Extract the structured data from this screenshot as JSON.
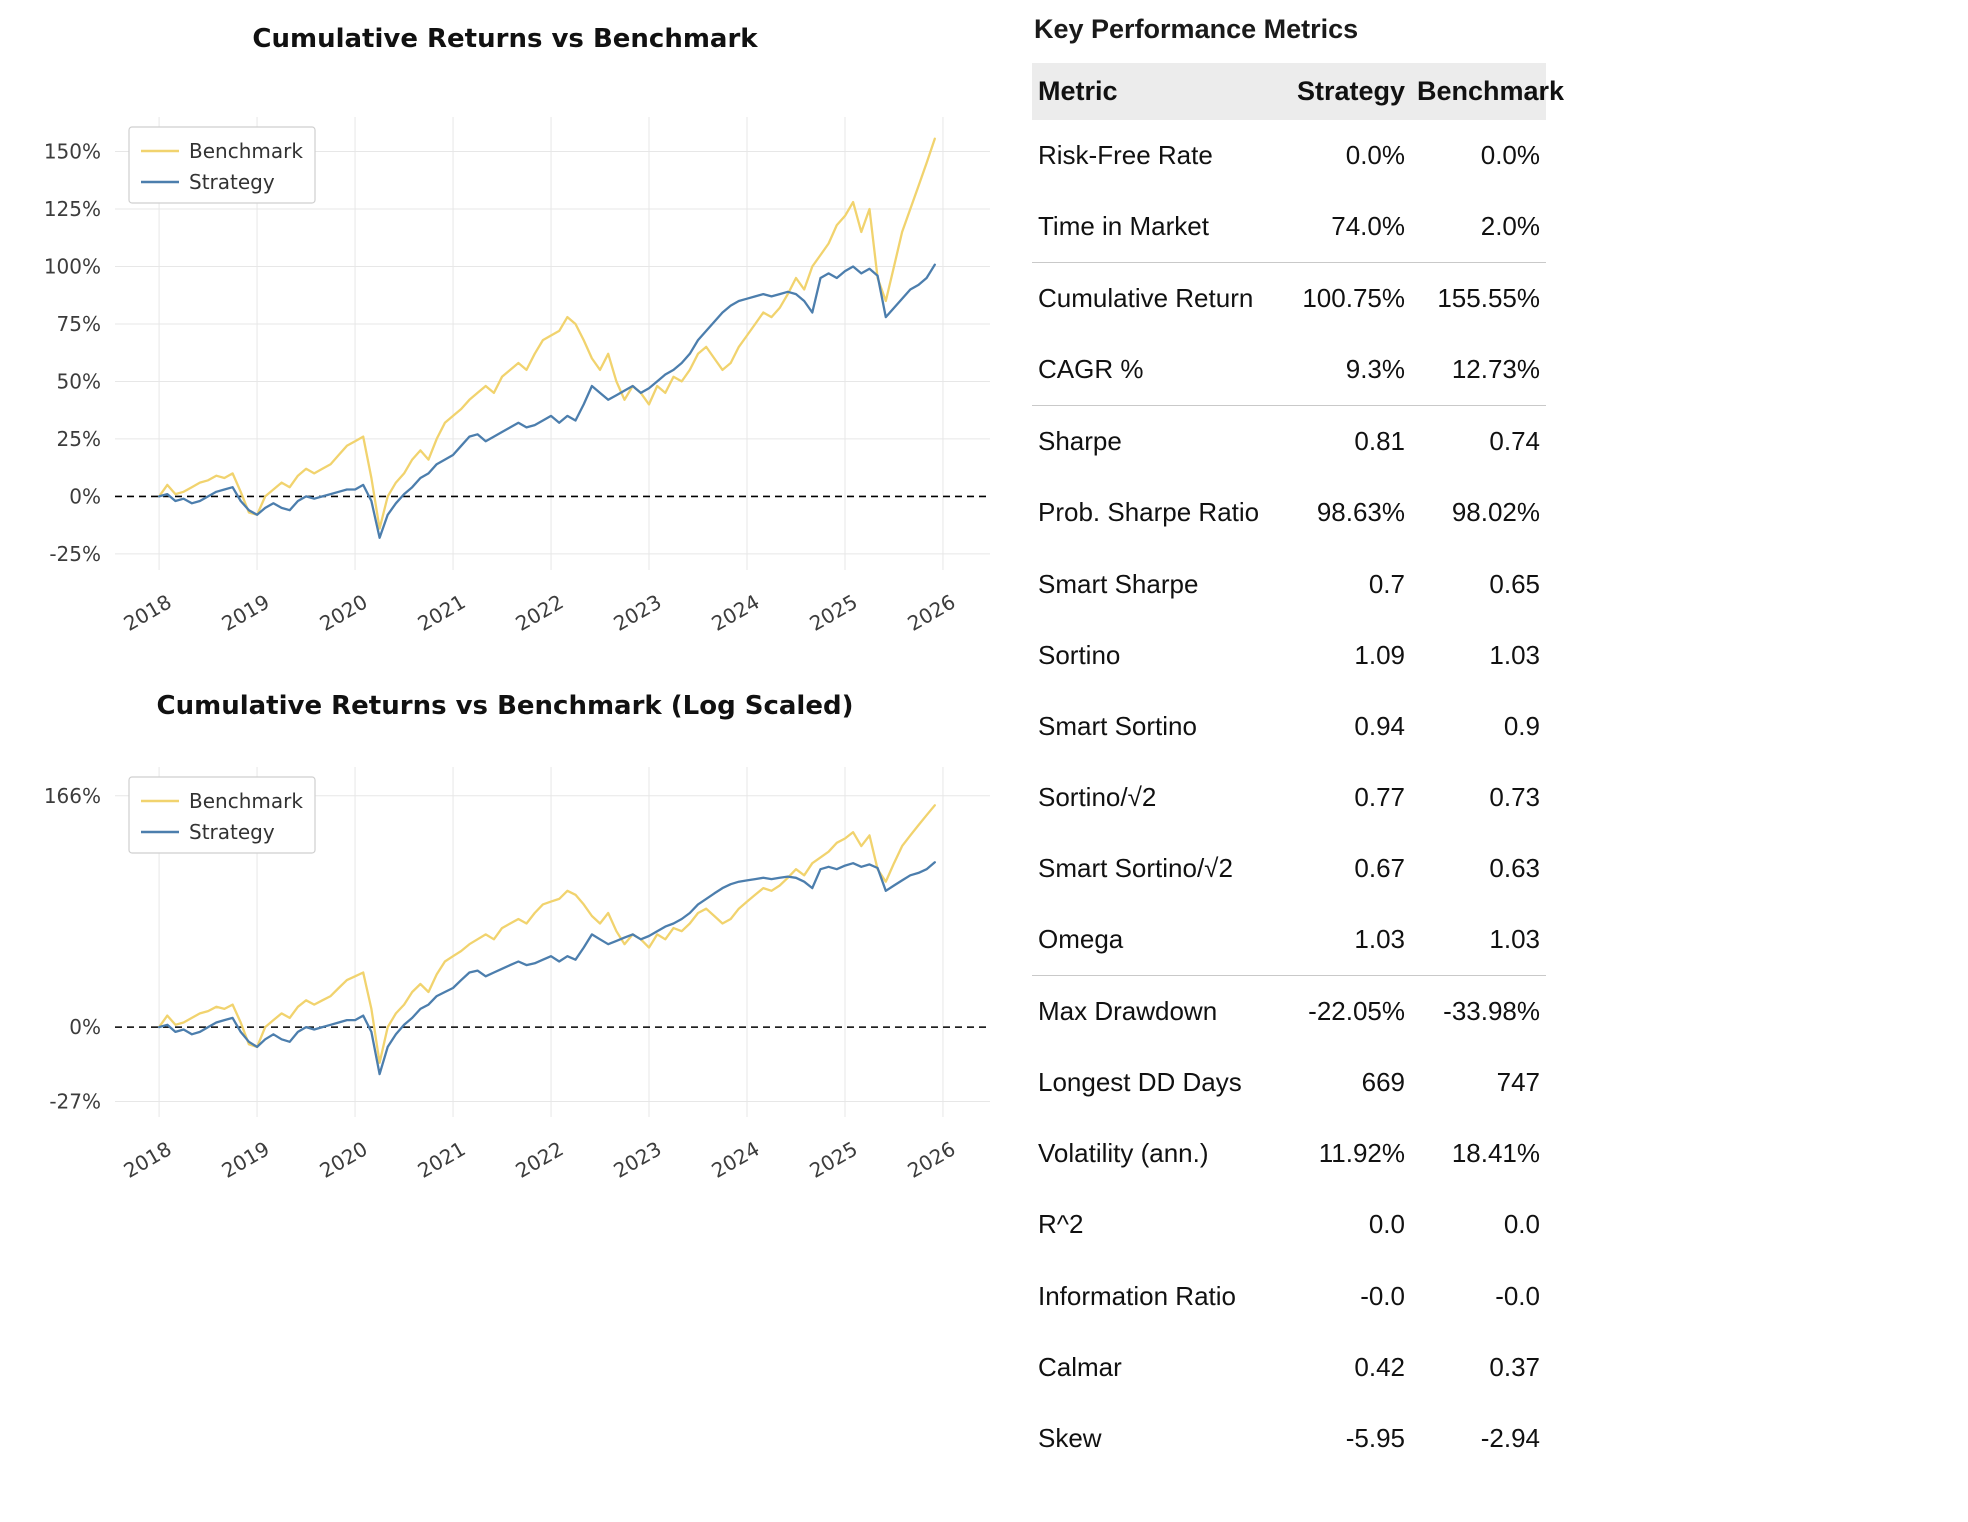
{
  "chart_data": [
    {
      "type": "line",
      "title": "Cumulative Returns vs Benchmark",
      "legend": {
        "position": "top-left",
        "entries": [
          "Benchmark",
          "Strategy"
        ]
      },
      "x_ticks": [
        2018,
        2019,
        2020,
        2021,
        2022,
        2023,
        2024,
        2025,
        2026
      ],
      "x_tick_labels": [
        "2018",
        "2019",
        "2020",
        "2021",
        "2022",
        "2023",
        "2024",
        "2025",
        "2026"
      ],
      "y_ticks": [
        150,
        125,
        100,
        75,
        50,
        25,
        0,
        -25
      ],
      "y_tick_labels": [
        "150%",
        "125%",
        "100%",
        "75%",
        "50%",
        "25%",
        "0%",
        "-25%"
      ],
      "xlim": [
        2017.55,
        2026.48
      ],
      "ylim": [
        -32,
        165
      ],
      "log_scale": false,
      "zero_line": true,
      "grid": true,
      "x_start": 2018.0,
      "x_step": 0.083333,
      "n_points": 96,
      "series": [
        {
          "name": "Benchmark",
          "color": "#f1d36e",
          "values": [
            0,
            5,
            1,
            2,
            4,
            6,
            7,
            9,
            8,
            10,
            2,
            -7,
            -8,
            0,
            3,
            6,
            4,
            9,
            12,
            10,
            12,
            14,
            18,
            22,
            24,
            26,
            8,
            -14,
            0,
            6,
            10,
            16,
            20,
            16,
            25,
            32,
            35,
            38,
            42,
            45,
            48,
            45,
            52,
            55,
            58,
            55,
            62,
            68,
            70,
            72,
            78,
            75,
            68,
            60,
            55,
            62,
            50,
            42,
            48,
            45,
            40,
            48,
            45,
            52,
            50,
            55,
            62,
            65,
            60,
            55,
            58,
            65,
            70,
            75,
            80,
            78,
            82,
            88,
            95,
            90,
            100,
            105,
            110,
            118,
            122,
            128,
            115,
            125,
            95,
            85,
            100,
            115,
            125,
            135,
            145,
            155.55
          ]
        },
        {
          "name": "Strategy",
          "color": "#4c7ead",
          "values": [
            0,
            1,
            -2,
            -1,
            -3,
            -2,
            0,
            2,
            3,
            4,
            -2,
            -6,
            -8,
            -5,
            -3,
            -5,
            -6,
            -2,
            0,
            -1,
            0,
            1,
            2,
            3,
            3,
            5,
            -2,
            -18,
            -8,
            -3,
            1,
            4,
            8,
            10,
            14,
            16,
            18,
            22,
            26,
            27,
            24,
            26,
            28,
            30,
            32,
            30,
            31,
            33,
            35,
            32,
            35,
            33,
            40,
            48,
            45,
            42,
            44,
            46,
            48,
            45,
            47,
            50,
            53,
            55,
            58,
            62,
            68,
            72,
            76,
            80,
            83,
            85,
            86,
            87,
            88,
            87,
            88,
            89,
            88,
            85,
            80,
            95,
            97,
            95,
            98,
            100,
            97,
            99,
            96,
            78,
            82,
            86,
            90,
            92,
            95,
            100.75
          ]
        }
      ]
    },
    {
      "type": "line",
      "title": "Cumulative Returns vs Benchmark (Log Scaled)",
      "legend": {
        "position": "top-left",
        "entries": [
          "Benchmark",
          "Strategy"
        ]
      },
      "x_ticks": [
        2018,
        2019,
        2020,
        2021,
        2022,
        2023,
        2024,
        2025,
        2026
      ],
      "x_tick_labels": [
        "2018",
        "2019",
        "2020",
        "2021",
        "2022",
        "2023",
        "2024",
        "2025",
        "2026"
      ],
      "y_ticks": [
        166,
        0,
        -27
      ],
      "y_tick_labels": [
        "166%",
        "0%",
        "-27%"
      ],
      "xlim": [
        2017.55,
        2026.48
      ],
      "ylim_log": [
        -0.38,
        1.1
      ],
      "log_scale": true,
      "zero_line": true,
      "grid": true,
      "series_from": 0
    }
  ],
  "metrics": {
    "title": "Key Performance Metrics",
    "columns": [
      "Metric",
      "Strategy",
      "Benchmark"
    ],
    "groups": [
      {
        "rows": [
          [
            "Risk-Free Rate",
            "0.0%",
            "0.0%"
          ],
          [
            "Time in Market",
            "74.0%",
            "2.0%"
          ]
        ]
      },
      {
        "rows": [
          [
            "Cumulative Return",
            "100.75%",
            "155.55%"
          ],
          [
            "CAGR %",
            "9.3%",
            "12.73%"
          ]
        ]
      },
      {
        "rows": [
          [
            "Sharpe",
            "0.81",
            "0.74"
          ],
          [
            "Prob. Sharpe Ratio",
            "98.63%",
            "98.02%"
          ],
          [
            "Smart Sharpe",
            "0.7",
            "0.65"
          ],
          [
            "Sortino",
            "1.09",
            "1.03"
          ],
          [
            "Smart Sortino",
            "0.94",
            "0.9"
          ],
          [
            "Sortino/√2",
            "0.77",
            "0.73"
          ],
          [
            "Smart Sortino/√2",
            "0.67",
            "0.63"
          ],
          [
            "Omega",
            "1.03",
            "1.03"
          ]
        ]
      },
      {
        "rows": [
          [
            "Max Drawdown",
            "-22.05%",
            "-33.98%"
          ],
          [
            "Longest DD Days",
            "669",
            "747"
          ],
          [
            "Volatility (ann.)",
            "11.92%",
            "18.41%"
          ],
          [
            "R^2",
            "0.0",
            "0.0"
          ],
          [
            "Information Ratio",
            "-0.0",
            "-0.0"
          ],
          [
            "Calmar",
            "0.42",
            "0.37"
          ],
          [
            "Skew",
            "-5.95",
            "-2.94"
          ]
        ]
      }
    ]
  },
  "colors": {
    "benchmark": "#f1d36e",
    "strategy": "#4c7ead",
    "grid": "#e7e7e7",
    "zero_line": "#000000",
    "header_bg": "#ececec",
    "separator": "#c9c9c9"
  }
}
